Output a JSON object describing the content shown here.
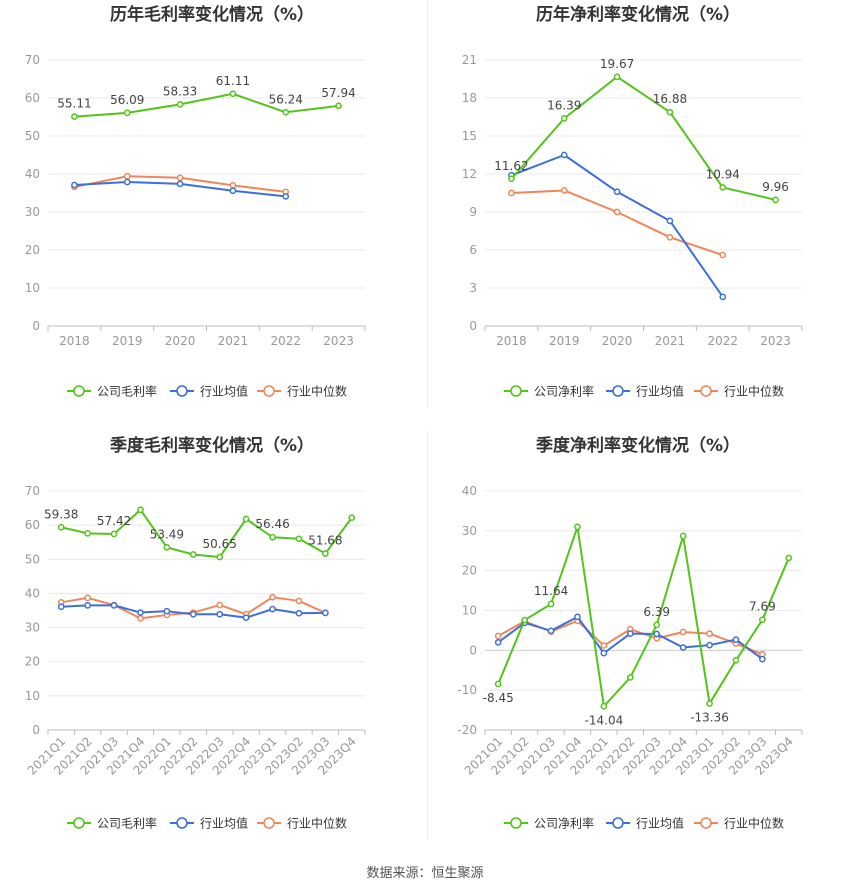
{
  "footer": {
    "source": "数据来源：恒生聚源"
  },
  "legend_swatches": {
    "company": "#52c41a",
    "avg": "#3d6fd8",
    "median": "#ef8659"
  },
  "chart_data": [
    {
      "type": "line",
      "title": "历年毛利率变化情况（%）",
      "x": [
        "2018",
        "2019",
        "2020",
        "2021",
        "2022",
        "2023"
      ],
      "ylim": [
        0,
        70
      ],
      "yticks": [
        0,
        10,
        20,
        30,
        40,
        50,
        60,
        70
      ],
      "grid": true,
      "legend_position": "bottom",
      "series": [
        {
          "name": "公司毛利率",
          "color": "#52c41a",
          "values": [
            55.11,
            56.09,
            58.33,
            61.11,
            56.24,
            57.94
          ],
          "labels": [
            "55.11",
            "56.09",
            "58.33",
            "61.11",
            "56.24",
            "57.94"
          ]
        },
        {
          "name": "行业均值",
          "color": "#3d6fd8",
          "values": [
            37.1,
            37.9,
            37.4,
            35.6,
            34.1,
            null
          ]
        },
        {
          "name": "行业中位数",
          "color": "#ef8659",
          "values": [
            36.6,
            39.4,
            39.0,
            37.0,
            35.3,
            null
          ]
        }
      ]
    },
    {
      "type": "line",
      "title": "历年净利率变化情况（%）",
      "x": [
        "2018",
        "2019",
        "2020",
        "2021",
        "2022",
        "2023"
      ],
      "ylim": [
        0,
        21
      ],
      "yticks": [
        0,
        3,
        6,
        9,
        12,
        15,
        18,
        21
      ],
      "grid": true,
      "legend_position": "bottom",
      "series": [
        {
          "name": "公司净利率",
          "color": "#52c41a",
          "values": [
            11.62,
            16.39,
            19.67,
            16.88,
            10.94,
            9.96
          ],
          "labels": [
            "11.62",
            "16.39",
            "19.67",
            "16.88",
            "10.94",
            "9.96"
          ]
        },
        {
          "name": "行业均值",
          "color": "#3d6fd8",
          "values": [
            11.9,
            13.5,
            10.6,
            8.3,
            2.3,
            null
          ]
        },
        {
          "name": "行业中位数",
          "color": "#ef8659",
          "values": [
            10.5,
            10.7,
            9.0,
            7.0,
            5.6,
            null
          ]
        }
      ]
    },
    {
      "type": "line",
      "title": "季度毛利率变化情况（%）",
      "x": [
        "2021Q1",
        "2021Q2",
        "2021Q3",
        "2021Q4",
        "2022Q1",
        "2022Q2",
        "2022Q3",
        "2022Q4",
        "2023Q1",
        "2023Q2",
        "2023Q3",
        "2023Q4"
      ],
      "ylim": [
        0,
        70
      ],
      "yticks": [
        0,
        10,
        20,
        30,
        40,
        50,
        60,
        70
      ],
      "grid": true,
      "legend_position": "bottom",
      "series": [
        {
          "name": "公司毛利率",
          "color": "#52c41a",
          "values": [
            59.38,
            57.6,
            57.42,
            64.5,
            53.49,
            51.4,
            50.65,
            61.8,
            56.46,
            56.0,
            51.68,
            62.2
          ],
          "labels": [
            "59.38",
            "",
            "57.42",
            "",
            "53.49",
            "",
            "50.65",
            "",
            "56.46",
            "",
            "51.68",
            ""
          ]
        },
        {
          "name": "行业均值",
          "color": "#3d6fd8",
          "values": [
            36.1,
            36.5,
            36.5,
            34.4,
            34.8,
            33.9,
            33.9,
            32.9,
            35.4,
            34.2,
            34.3,
            null
          ]
        },
        {
          "name": "行业中位数",
          "color": "#ef8659",
          "values": [
            37.4,
            38.7,
            36.6,
            32.7,
            33.7,
            34.4,
            36.6,
            33.9,
            38.9,
            37.8,
            34.3,
            null
          ]
        }
      ]
    },
    {
      "type": "line",
      "title": "季度净利率变化情况（%）",
      "x": [
        "2021Q1",
        "2021Q2",
        "2021Q3",
        "2021Q4",
        "2022Q1",
        "2022Q2",
        "2022Q3",
        "2022Q4",
        "2023Q1",
        "2023Q2",
        "2023Q3",
        "2023Q4"
      ],
      "ylim": [
        -20,
        40
      ],
      "yticks": [
        -20,
        -10,
        0,
        10,
        20,
        30,
        40
      ],
      "grid": true,
      "legend_position": "bottom",
      "series": [
        {
          "name": "公司净利率",
          "color": "#52c41a",
          "values": [
            -8.45,
            7.6,
            11.64,
            31.0,
            -14.04,
            -6.8,
            6.39,
            28.7,
            -13.36,
            -2.5,
            7.69,
            23.2
          ],
          "labels": [
            "-8.45",
            "",
            "11.64",
            "",
            "-14.04",
            "",
            "6.39",
            "",
            "-13.36",
            "",
            "7.69",
            ""
          ]
        },
        {
          "name": "行业均值",
          "color": "#3d6fd8",
          "values": [
            2.0,
            6.9,
            4.9,
            8.4,
            -0.7,
            4.2,
            4.1,
            0.7,
            1.3,
            2.7,
            -2.2,
            null
          ]
        },
        {
          "name": "行业中位数",
          "color": "#ef8659",
          "values": [
            3.6,
            7.3,
            4.7,
            7.4,
            1.2,
            5.3,
            3.0,
            4.6,
            4.2,
            1.7,
            -1.0,
            null
          ]
        }
      ]
    }
  ]
}
